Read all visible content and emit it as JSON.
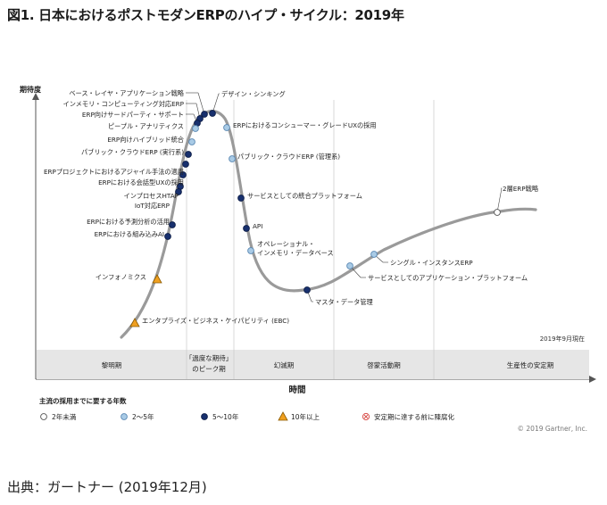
{
  "page": {
    "title": "図1. 日本におけるポストモダンERPのハイプ・サイクル：2019年",
    "source": "出典：ガートナー (2019年12月)"
  },
  "chart_data": {
    "type": "line",
    "title": "図1. 日本におけるポストモダンERPのハイプ・サイクル：2019年",
    "ylabel": "期待度",
    "xlabel": "時間",
    "as_of": "2019年9月現在",
    "copyright": "© 2019 Gartner, Inc.",
    "grid": false,
    "phases": [
      "黎明期",
      "「過度な期待」のピーク期",
      "幻滅期",
      "啓蒙活動期",
      "生産性の安定期"
    ],
    "legend": {
      "title": "主流の採用までに要する年数",
      "items": [
        {
          "key": "lt2",
          "label": "2年未満"
        },
        {
          "key": "2to5",
          "label": "2～5年"
        },
        {
          "key": "5to10",
          "label": "5～10年"
        },
        {
          "key": "gt10",
          "label": "10年以上"
        },
        {
          "key": "obsolete",
          "label": "安定期に達する前に陳腐化"
        }
      ]
    },
    "colors": {
      "curve": "#9a9a9a",
      "lt2": "#ffffff",
      "2to5": "#a9cbe6",
      "5to10": "#18306e",
      "gt10": "#f0a020",
      "obsolete": "#d9534f"
    },
    "technologies": [
      {
        "name": "ベース・レイヤ・アプリケーション戦略",
        "category": "5to10"
      },
      {
        "name": "インメモリ・コンピューティング対応ERP",
        "category": "5to10"
      },
      {
        "name": "ERP向けサードパーティ・サポート",
        "category": "5to10"
      },
      {
        "name": "ピープル・アナリティクス",
        "category": "2to5"
      },
      {
        "name": "ERP向けハイブリッド統合",
        "category": "2to5"
      },
      {
        "name": "パブリック・クラウドERP (実行系)",
        "category": "5to10"
      },
      {
        "name": "ERPプロジェクトにおけるアジャイル手法の適用",
        "category": "5to10"
      },
      {
        "name": "ERPにおける会話型UXの採用",
        "category": "5to10"
      },
      {
        "name": "インプロセスHTAP",
        "category": "5to10"
      },
      {
        "name": "IoT対応ERP",
        "category": "5to10"
      },
      {
        "name": "ERPにおける予測分析の活用",
        "category": "5to10"
      },
      {
        "name": "ERPにおける組み込みAI",
        "category": "5to10"
      },
      {
        "name": "インフォノミクス",
        "category": "gt10"
      },
      {
        "name": "エンタプライズ・ビジネス・ケイパビリティ (EBC)",
        "category": "gt10"
      },
      {
        "name": "デザイン・シンキング",
        "category": "5to10"
      },
      {
        "name": "ERPにおけるコンシューマー・グレードUXの採用",
        "category": "2to5"
      },
      {
        "name": "パブリック・クラウドERP (管理系)",
        "category": "2to5"
      },
      {
        "name": "サービスとしての統合プラットフォーム",
        "category": "5to10"
      },
      {
        "name": "API",
        "category": "5to10"
      },
      {
        "name": "オペレーショナル・\nインメモリ・データベース",
        "category": "2to5"
      },
      {
        "name": "マスタ・データ管理",
        "category": "5to10"
      },
      {
        "name": "シングル・インスタンスERP",
        "category": "2to5"
      },
      {
        "name": "サービスとしてのアプリケーション・プラットフォーム",
        "category": "2to5"
      },
      {
        "name": "2層ERP戦略",
        "category": "lt2"
      }
    ]
  }
}
